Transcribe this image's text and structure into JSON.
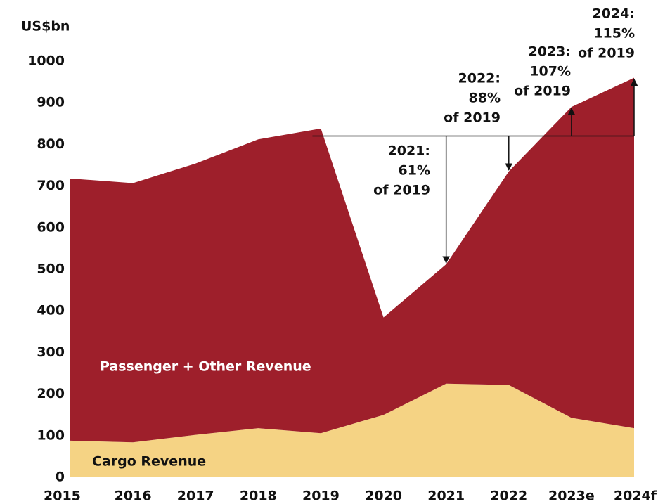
{
  "chart_data": {
    "type": "stacked-area",
    "y_label": "US$bn",
    "categories": [
      "2015",
      "2016",
      "2017",
      "2018",
      "2019",
      "2020",
      "2021",
      "2022",
      "2023e",
      "2024f"
    ],
    "series": [
      {
        "name": "Cargo Revenue",
        "color": "#f5d384",
        "values": [
          88,
          84,
          102,
          118,
          106,
          150,
          225,
          222,
          143,
          118
        ]
      },
      {
        "name": "Passenger + Other Revenue",
        "color": "#9e1f2b",
        "values": [
          630,
          623,
          652,
          694,
          732,
          234,
          287,
          513,
          747,
          842
        ]
      }
    ],
    "ylim": [
      0,
      1000
    ],
    "yticks": [
      0,
      100,
      200,
      300,
      400,
      500,
      600,
      700,
      800,
      900,
      1000
    ],
    "reference_line": 820,
    "annotations": [
      {
        "category": 6,
        "lines": [
          "2021:",
          "61%",
          "of 2019"
        ]
      },
      {
        "category": 7,
        "lines": [
          "2022:",
          "88%",
          "of 2019"
        ]
      },
      {
        "category": 8,
        "lines": [
          "2023:",
          "107%",
          "of 2019"
        ]
      },
      {
        "category": 9,
        "lines": [
          "2024:",
          "115%",
          "of 2019"
        ]
      }
    ]
  }
}
